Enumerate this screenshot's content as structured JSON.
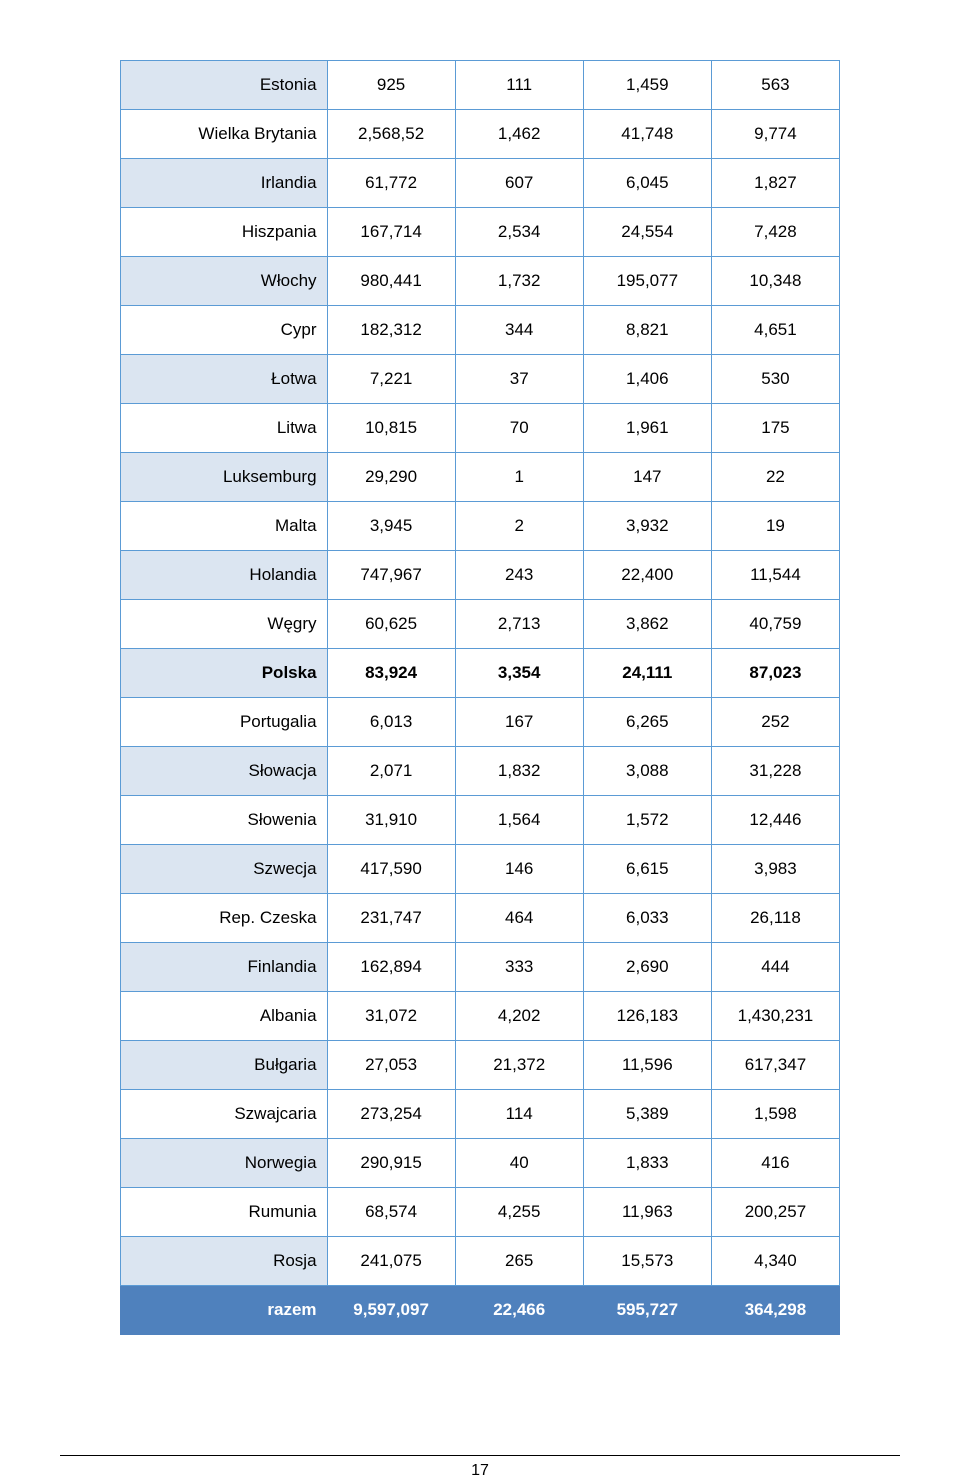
{
  "table": {
    "colors": {
      "border": "#5b9bd5",
      "band_bg": "#dbe5f1",
      "total_bg": "#4f81bd",
      "total_fg": "#ffffff",
      "text": "#000000",
      "page_bg": "#ffffff"
    },
    "rows": [
      {
        "label": "Estonia",
        "c1": "925",
        "c2": "111",
        "c3": "1,459",
        "c4": "563",
        "band": true,
        "bold": false
      },
      {
        "label": "Wielka Brytania",
        "c1": "2,568,52",
        "c2": "1,462",
        "c3": "41,748",
        "c4": "9,774",
        "band": false,
        "bold": false
      },
      {
        "label": "Irlandia",
        "c1": "61,772",
        "c2": "607",
        "c3": "6,045",
        "c4": "1,827",
        "band": true,
        "bold": false
      },
      {
        "label": "Hiszpania",
        "c1": "167,714",
        "c2": "2,534",
        "c3": "24,554",
        "c4": "7,428",
        "band": false,
        "bold": false
      },
      {
        "label": "Włochy",
        "c1": "980,441",
        "c2": "1,732",
        "c3": "195,077",
        "c4": "10,348",
        "band": true,
        "bold": false
      },
      {
        "label": "Cypr",
        "c1": "182,312",
        "c2": "344",
        "c3": "8,821",
        "c4": "4,651",
        "band": false,
        "bold": false
      },
      {
        "label": "Łotwa",
        "c1": "7,221",
        "c2": "37",
        "c3": "1,406",
        "c4": "530",
        "band": true,
        "bold": false
      },
      {
        "label": "Litwa",
        "c1": "10,815",
        "c2": "70",
        "c3": "1,961",
        "c4": "175",
        "band": false,
        "bold": false
      },
      {
        "label": "Luksemburg",
        "c1": "29,290",
        "c2": "1",
        "c3": "147",
        "c4": "22",
        "band": true,
        "bold": false
      },
      {
        "label": "Malta",
        "c1": "3,945",
        "c2": "2",
        "c3": "3,932",
        "c4": "19",
        "band": false,
        "bold": false
      },
      {
        "label": "Holandia",
        "c1": "747,967",
        "c2": "243",
        "c3": "22,400",
        "c4": "11,544",
        "band": true,
        "bold": false
      },
      {
        "label": "Węgry",
        "c1": "60,625",
        "c2": "2,713",
        "c3": "3,862",
        "c4": "40,759",
        "band": false,
        "bold": false
      },
      {
        "label": "Polska",
        "c1": "83,924",
        "c2": "3,354",
        "c3": "24,111",
        "c4": "87,023",
        "band": true,
        "bold": true
      },
      {
        "label": "Portugalia",
        "c1": "6,013",
        "c2": "167",
        "c3": "6,265",
        "c4": "252",
        "band": false,
        "bold": false
      },
      {
        "label": "Słowacja",
        "c1": "2,071",
        "c2": "1,832",
        "c3": "3,088",
        "c4": "31,228",
        "band": true,
        "bold": false
      },
      {
        "label": "Słowenia",
        "c1": "31,910",
        "c2": "1,564",
        "c3": "1,572",
        "c4": "12,446",
        "band": false,
        "bold": false
      },
      {
        "label": "Szwecja",
        "c1": "417,590",
        "c2": "146",
        "c3": "6,615",
        "c4": "3,983",
        "band": true,
        "bold": false
      },
      {
        "label": "Rep. Czeska",
        "c1": "231,747",
        "c2": "464",
        "c3": "6,033",
        "c4": "26,118",
        "band": false,
        "bold": false
      },
      {
        "label": "Finlandia",
        "c1": "162,894",
        "c2": "333",
        "c3": "2,690",
        "c4": "444",
        "band": true,
        "bold": false
      },
      {
        "label": "Albania",
        "c1": "31,072",
        "c2": "4,202",
        "c3": "126,183",
        "c4": "1,430,231",
        "band": false,
        "bold": false
      },
      {
        "label": "Bułgaria",
        "c1": "27,053",
        "c2": "21,372",
        "c3": "11,596",
        "c4": "617,347",
        "band": true,
        "bold": false
      },
      {
        "label": "Szwajcaria",
        "c1": "273,254",
        "c2": "114",
        "c3": "5,389",
        "c4": "1,598",
        "band": false,
        "bold": false
      },
      {
        "label": "Norwegia",
        "c1": "290,915",
        "c2": "40",
        "c3": "1,833",
        "c4": "416",
        "band": true,
        "bold": false
      },
      {
        "label": "Rumunia",
        "c1": "68,574",
        "c2": "4,255",
        "c3": "11,963",
        "c4": "200,257",
        "band": false,
        "bold": false
      },
      {
        "label": "Rosja",
        "c1": "241,075",
        "c2": "265",
        "c3": "15,573",
        "c4": "4,340",
        "band": true,
        "bold": false
      }
    ],
    "total": {
      "label": "razem",
      "c1": "9,597,097",
      "c2": "22,466",
      "c3": "595,727",
      "c4": "364,298"
    }
  },
  "page_number": "17"
}
